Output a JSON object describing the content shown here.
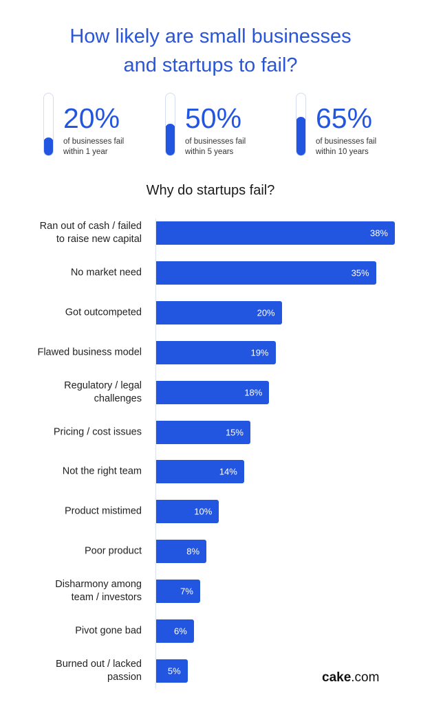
{
  "title_line1": "How likely are small businesses",
  "title_line2": "and startups to fail?",
  "stats": [
    {
      "value": "20%",
      "percent": 20,
      "line1": "of businesses fail",
      "line2": "within 1 year"
    },
    {
      "value": "50%",
      "percent": 50,
      "line1": "of businesses fail",
      "line2": "within 5 years"
    },
    {
      "value": "65%",
      "percent": 65,
      "line1": "of businesses fail",
      "line2": "within 10 years"
    }
  ],
  "logo_bold": "cake",
  "logo_rest": ".com",
  "chart_data": {
    "type": "bar",
    "orientation": "horizontal",
    "title": "Why do startups fail?",
    "categories": [
      "Ran out of cash / failed to raise new capital",
      "No market need",
      "Got outcompeted",
      "Flawed business model",
      "Regulatory / legal challenges",
      "Pricing / cost issues",
      "Not the right team",
      "Product mistimed",
      "Poor product",
      "Disharmony among team / investors",
      "Pivot gone bad",
      "Burned out / lacked passion"
    ],
    "label_lines": [
      [
        "Ran out of cash / failed",
        "to raise new capital"
      ],
      [
        "No market need"
      ],
      [
        "Got outcompeted"
      ],
      [
        "Flawed business model"
      ],
      [
        "Regulatory / legal",
        "challenges"
      ],
      [
        "Pricing / cost issues"
      ],
      [
        "Not the right team"
      ],
      [
        "Product mistimed"
      ],
      [
        "Poor product"
      ],
      [
        "Disharmony among",
        "team / investors"
      ],
      [
        "Pivot gone bad"
      ],
      [
        "Burned out / lacked",
        "passion"
      ]
    ],
    "values": [
      38,
      35,
      20,
      19,
      18,
      15,
      14,
      10,
      8,
      7,
      6,
      5
    ],
    "value_labels": [
      "38%",
      "35%",
      "20%",
      "19%",
      "18%",
      "15%",
      "14%",
      "10%",
      "8%",
      "7%",
      "6%",
      "5%"
    ],
    "unit": "%",
    "xlim": [
      0,
      38
    ],
    "bar_color": "#2356e0"
  }
}
